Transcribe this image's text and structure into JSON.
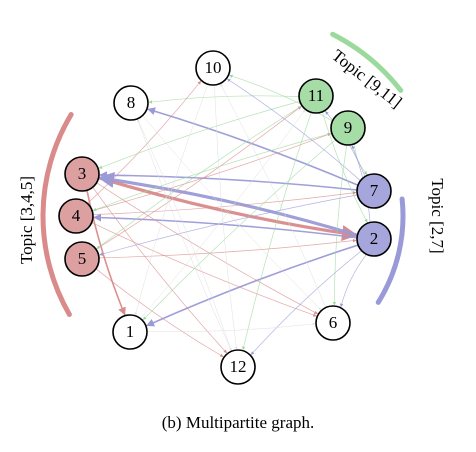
{
  "caption": "(b) Multipartite graph.",
  "colors": {
    "red": "#d98a8a",
    "red_fill": "#dca0a0",
    "green": "#9cd99c",
    "green_fill": "#a6dca6",
    "blue": "#9a9ad8",
    "blue_fill": "#a6a6dc",
    "faint": "#dddddd"
  },
  "groups": [
    {
      "id": "g345",
      "label": "Topic [3,4,5]",
      "color": "red"
    },
    {
      "id": "g911",
      "label": "Topic [9,11]",
      "color": "green"
    },
    {
      "id": "g27",
      "label": "Topic [2,7]",
      "color": "blue"
    }
  ],
  "nodes": [
    {
      "id": "1",
      "label": "1",
      "group": null
    },
    {
      "id": "2",
      "label": "2",
      "group": "g27"
    },
    {
      "id": "3",
      "label": "3",
      "group": "g345"
    },
    {
      "id": "4",
      "label": "4",
      "group": "g345"
    },
    {
      "id": "5",
      "label": "5",
      "group": "g345"
    },
    {
      "id": "6",
      "label": "6",
      "group": null
    },
    {
      "id": "7",
      "label": "7",
      "group": "g27"
    },
    {
      "id": "8",
      "label": "8",
      "group": null
    },
    {
      "id": "9",
      "label": "9",
      "group": "g911"
    },
    {
      "id": "10",
      "label": "10",
      "group": null
    },
    {
      "id": "11",
      "label": "11",
      "group": "g911"
    },
    {
      "id": "12",
      "label": "12",
      "group": null
    }
  ],
  "edges": [
    {
      "from": "3",
      "to": "2",
      "color": "red",
      "weight": "strong"
    },
    {
      "from": "2",
      "to": "3",
      "color": "blue",
      "weight": "strong"
    },
    {
      "from": "3",
      "to": "1",
      "color": "red",
      "weight": "medium"
    },
    {
      "from": "7",
      "to": "3",
      "color": "blue",
      "weight": "medium"
    },
    {
      "from": "2",
      "to": "4",
      "color": "blue",
      "weight": "medium"
    },
    {
      "from": "7",
      "to": "8",
      "color": "blue",
      "weight": "medium"
    },
    {
      "from": "2",
      "to": "1",
      "color": "blue",
      "weight": "medium"
    },
    {
      "from": "4",
      "to": "7",
      "color": "red",
      "weight": "light"
    },
    {
      "from": "3",
      "to": "6",
      "color": "red",
      "weight": "light"
    },
    {
      "from": "5",
      "to": "12",
      "color": "red",
      "weight": "light"
    },
    {
      "from": "4",
      "to": "6",
      "color": "red",
      "weight": "light"
    },
    {
      "from": "5",
      "to": "2",
      "color": "red",
      "weight": "light"
    },
    {
      "from": "3",
      "to": "12",
      "color": "red",
      "weight": "light"
    },
    {
      "from": "4",
      "to": "9",
      "color": "red",
      "weight": "light"
    },
    {
      "from": "5",
      "to": "11",
      "color": "red",
      "weight": "light"
    },
    {
      "from": "4",
      "to": "10",
      "color": "red",
      "weight": "light"
    },
    {
      "from": "11",
      "to": "3",
      "color": "green",
      "weight": "light"
    },
    {
      "from": "9",
      "to": "4",
      "color": "green",
      "weight": "light"
    },
    {
      "from": "11",
      "to": "5",
      "color": "green",
      "weight": "light"
    },
    {
      "from": "9",
      "to": "1",
      "color": "green",
      "weight": "light"
    },
    {
      "from": "11",
      "to": "12",
      "color": "green",
      "weight": "light"
    },
    {
      "from": "9",
      "to": "6",
      "color": "green",
      "weight": "light"
    },
    {
      "from": "11",
      "to": "2",
      "color": "green",
      "weight": "light"
    },
    {
      "from": "9",
      "to": "7",
      "color": "green",
      "weight": "light"
    },
    {
      "from": "11",
      "to": "8",
      "color": "green",
      "weight": "light"
    },
    {
      "from": "9",
      "to": "10",
      "color": "green",
      "weight": "light"
    },
    {
      "from": "7",
      "to": "10",
      "color": "blue",
      "weight": "light"
    },
    {
      "from": "2",
      "to": "12",
      "color": "blue",
      "weight": "light"
    },
    {
      "from": "7",
      "to": "5",
      "color": "blue",
      "weight": "light"
    },
    {
      "from": "2",
      "to": "6",
      "color": "blue",
      "weight": "light"
    },
    {
      "from": "7",
      "to": "11",
      "color": "blue",
      "weight": "light"
    },
    {
      "from": "2",
      "to": "9",
      "color": "blue",
      "weight": "light"
    },
    {
      "from": "8",
      "to": "6",
      "color": "faint",
      "weight": "faint"
    },
    {
      "from": "10",
      "to": "12",
      "color": "faint",
      "weight": "faint"
    },
    {
      "from": "1",
      "to": "11",
      "color": "faint",
      "weight": "faint"
    },
    {
      "from": "8",
      "to": "12",
      "color": "faint",
      "weight": "faint"
    },
    {
      "from": "10",
      "to": "1",
      "color": "faint",
      "weight": "faint"
    },
    {
      "from": "6",
      "to": "10",
      "color": "faint",
      "weight": "faint"
    },
    {
      "from": "12",
      "to": "8",
      "color": "faint",
      "weight": "faint"
    },
    {
      "from": "1",
      "to": "6",
      "color": "faint",
      "weight": "faint"
    }
  ]
}
